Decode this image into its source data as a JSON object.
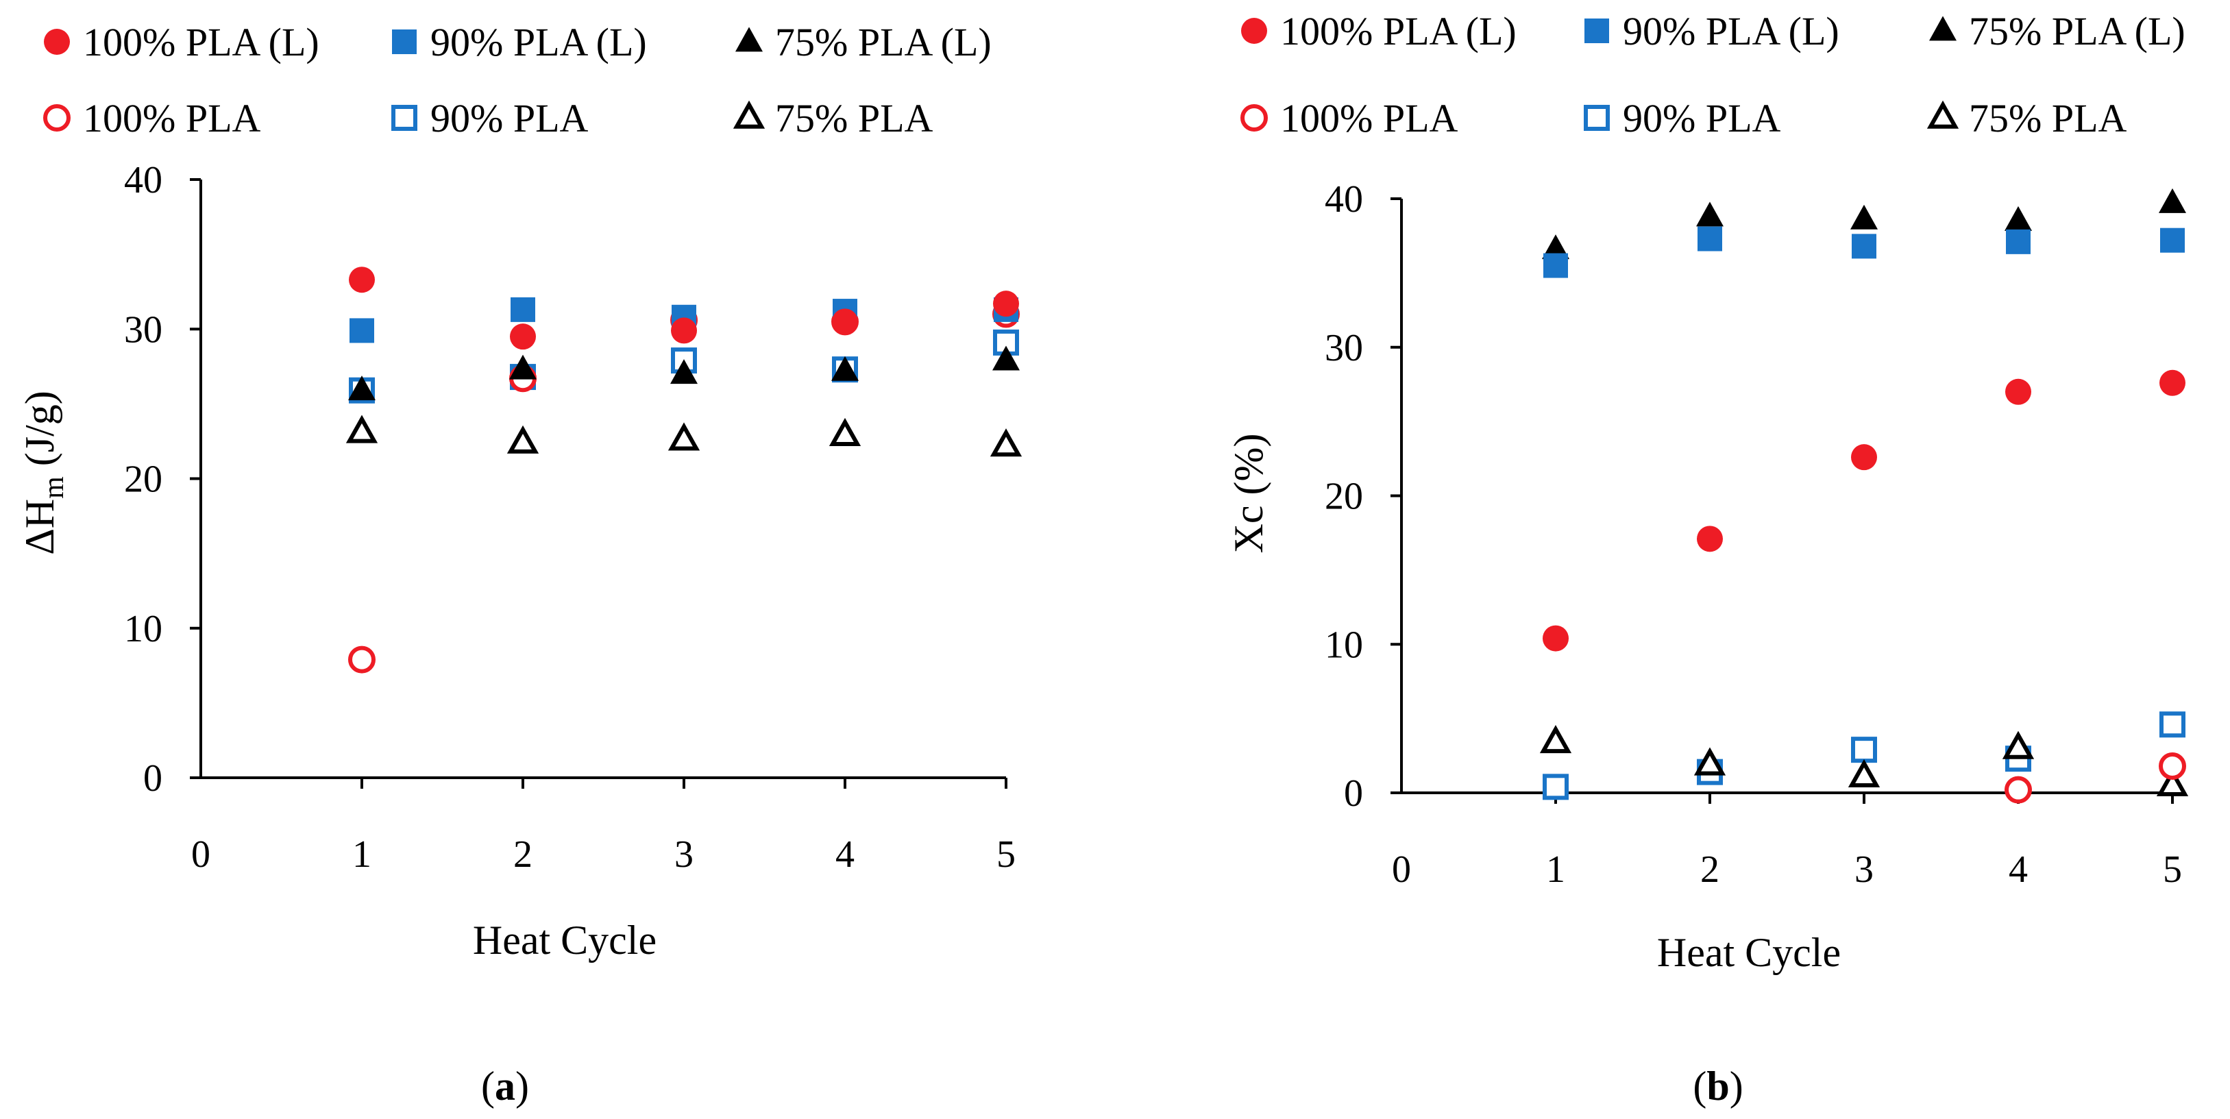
{
  "legend": {
    "items": [
      {
        "label": "100% PLA (L)",
        "marker": "circle",
        "filled": true,
        "color": "#ee1c25"
      },
      {
        "label": "90% PLA (L)",
        "marker": "square",
        "filled": true,
        "color": "#1a75c8"
      },
      {
        "label": "75% PLA (L)",
        "marker": "triangle",
        "filled": true,
        "color": "#000000"
      },
      {
        "label": "100% PLA",
        "marker": "circle",
        "filled": false,
        "color": "#ee1c25"
      },
      {
        "label": "90% PLA",
        "marker": "square",
        "filled": false,
        "color": "#1a75c8"
      },
      {
        "label": "75% PLA",
        "marker": "triangle",
        "filled": false,
        "color": "#000000"
      }
    ]
  },
  "chart_data": [
    {
      "type": "scatter",
      "panel_label": "(a)",
      "panel_letter": "a",
      "title": "",
      "xlabel": "Heat Cycle",
      "ylabel_main": "ΔH",
      "ylabel_sub": "m",
      "ylabel_unit": " (J/g)",
      "xlim": [
        0,
        5
      ],
      "ylim": [
        0,
        40
      ],
      "xticks": [
        "0",
        "1",
        "2",
        "3",
        "4",
        "5"
      ],
      "yticks": [
        "0",
        "10",
        "20",
        "30",
        "40"
      ],
      "grid": false,
      "x": [
        1,
        2,
        3,
        4,
        5
      ],
      "series": [
        {
          "name": "100% PLA (L)",
          "values": [
            33.3,
            29.5,
            29.9,
            30.5,
            31.7
          ]
        },
        {
          "name": "90% PLA (L)",
          "values": [
            29.9,
            31.3,
            30.8,
            31.2,
            31.3
          ]
        },
        {
          "name": "75% PLA (L)",
          "values": [
            25.9,
            27.3,
            27.0,
            27.2,
            27.9
          ]
        },
        {
          "name": "100% PLA",
          "values": [
            7.9,
            26.7,
            30.6,
            30.5,
            31.0
          ]
        },
        {
          "name": "90% PLA",
          "values": [
            25.9,
            26.8,
            27.9,
            27.3,
            29.1
          ]
        },
        {
          "name": "75% PLA",
          "values": [
            23.1,
            22.4,
            22.6,
            22.9,
            22.2
          ]
        }
      ]
    },
    {
      "type": "scatter",
      "panel_label": "(b)",
      "panel_letter": "b",
      "title": "",
      "xlabel": "Heat Cycle",
      "ylabel": "Xc (%)",
      "xlim": [
        0,
        5
      ],
      "ylim": [
        0,
        40
      ],
      "xticks": [
        "0",
        "1",
        "2",
        "3",
        "4",
        "5"
      ],
      "yticks": [
        "0",
        "10",
        "20",
        "30",
        "40"
      ],
      "grid": false,
      "x": [
        1,
        2,
        3,
        4,
        5
      ],
      "series": [
        {
          "name": "100% PLA (L)",
          "values": [
            10.4,
            17.1,
            22.6,
            27.0,
            27.6
          ]
        },
        {
          "name": "90% PLA (L)",
          "values": [
            35.5,
            37.3,
            36.8,
            37.1,
            37.2
          ]
        },
        {
          "name": "75% PLA (L)",
          "values": [
            36.6,
            38.8,
            38.6,
            38.5,
            39.7
          ]
        },
        {
          "name": "100% PLA",
          "values": [
            null,
            null,
            null,
            0.2,
            1.8
          ]
        },
        {
          "name": "90% PLA",
          "values": [
            0.4,
            1.4,
            2.9,
            2.3,
            4.6
          ]
        },
        {
          "name": "75% PLA",
          "values": [
            3.4,
            1.9,
            1.1,
            3.0,
            0.5
          ]
        }
      ]
    }
  ]
}
